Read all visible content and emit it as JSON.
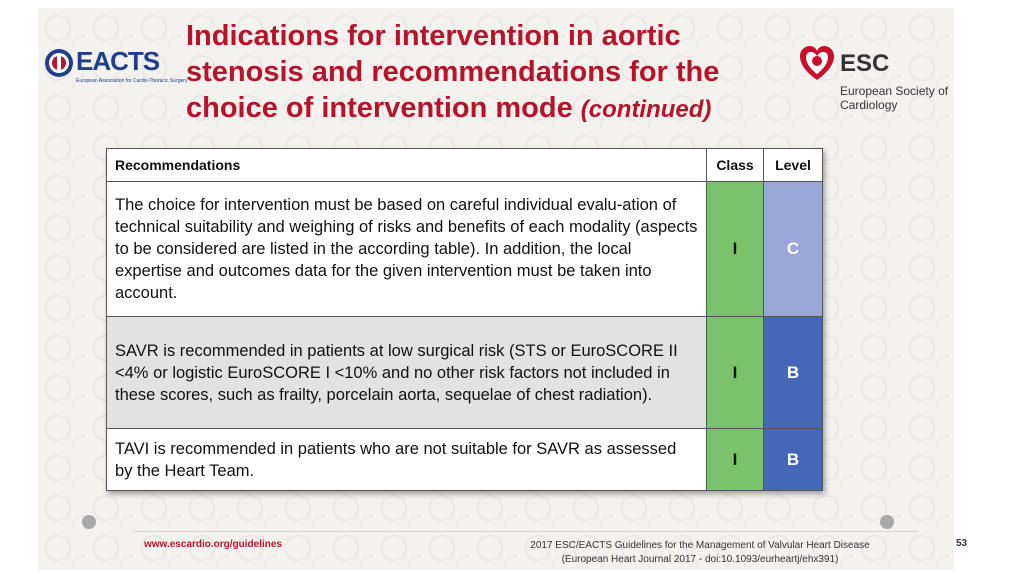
{
  "header": {
    "title_main": "Indications for intervention in aortic stenosis and recommendations for the choice of intervention mode",
    "title_suffix": "(continued)",
    "left_logo": {
      "name": "EACTS",
      "subtitle": "European Association for Cardio-Thoracic Surgery"
    },
    "right_logo": {
      "name": "ESC",
      "subtitle": "European Society of Cardiology"
    }
  },
  "table": {
    "headers": {
      "recommendations": "Recommendations",
      "class": "Class",
      "level": "Level"
    },
    "rows": [
      {
        "text": "The choice for intervention must be based on careful individual evalu-ation of technical suitability and weighing of risks and benefits of each modality (aspects to be considered are listed in the according table). In addition, the local expertise and outcomes data for the given intervention must be taken into account.",
        "class": "I",
        "level": "C"
      },
      {
        "text": "SAVR is recommended in patients at low surgical risk (STS or EuroSCORE II <4% or logistic EuroSCORE I <10% and no other risk factors not included in these scores, such as frailty, porcelain aorta, sequelae of chest radiation).",
        "class": "I",
        "level": "B"
      },
      {
        "text": "TAVI is recommended in patients who are not suitable for SAVR as assessed by the Heart Team.",
        "class": "I",
        "level": "B"
      }
    ]
  },
  "footer": {
    "url": "www.escardio.org/guidelines",
    "citation_line1": "2017 ESC/EACTS Guidelines for the Management of Valvular Heart Disease",
    "citation_line2": "(European Heart Journal 2017 - doi:10.1093/eurheartj/ehx391)",
    "page_number": "53"
  },
  "colors": {
    "title": "#b5152b",
    "class_I": "#7ac36a",
    "level_C": "#9aa7d8",
    "level_B": "#4567b8",
    "shaded_row": "#e2e2e2"
  }
}
